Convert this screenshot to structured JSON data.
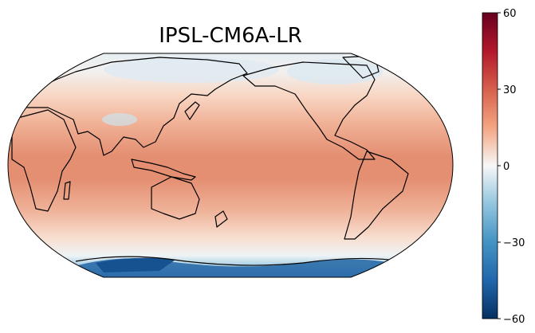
{
  "title": "IPSL-CM6A-LR",
  "projection": "robinson",
  "central_longitude": 180,
  "field": {
    "type": "diverging",
    "pattern": "warm tropics and mid-latitudes, near-zero high northern latitudes, strong negative over Antarctica"
  },
  "colorbar": {
    "cmap": "RdBu_r",
    "min": -60,
    "max": 60,
    "ticks": [
      "60",
      "30",
      "0",
      "−30",
      "−60"
    ],
    "colors": {
      "min": "#053061",
      "low": "#2166ac",
      "mid_low": "#92c5de",
      "zero": "#f7f7f7",
      "mid_high": "#f4a582",
      "high": "#b2182b",
      "max": "#67001f"
    }
  }
}
